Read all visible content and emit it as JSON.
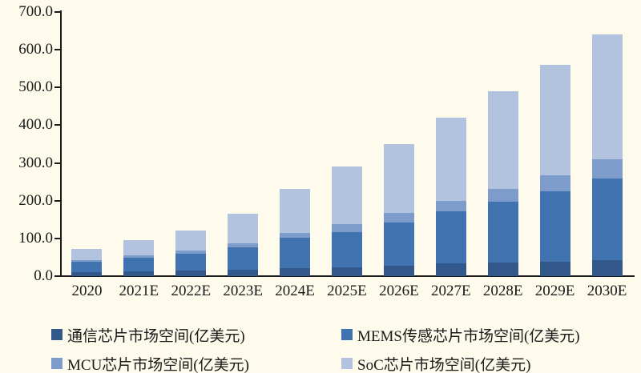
{
  "page": {
    "background_color": "#FEFAEC",
    "text_color": "#1A1A1A",
    "axis_color": "#1A1A1A"
  },
  "chart_data": {
    "type": "bar",
    "stacked": true,
    "title": "",
    "xlabel": "",
    "ylabel": "",
    "categories": [
      "2020",
      "2021E",
      "2022E",
      "2023E",
      "2024E",
      "2025E",
      "2026E",
      "2027E",
      "2028E",
      "2029E",
      "2030E"
    ],
    "series": [
      {
        "name": "通信芯片市场空间(亿美元)",
        "color": "#33598C",
        "values": [
          10,
          13,
          15,
          17,
          22,
          24,
          28,
          33,
          36,
          38,
          43
        ]
      },
      {
        "name": "MEMS传感芯片市场空间(亿美元)",
        "color": "#4173B1",
        "values": [
          28,
          36,
          45,
          60,
          80,
          92,
          115,
          139,
          161,
          187,
          215
        ]
      },
      {
        "name": "MCU芯片市场空间(亿美元)",
        "color": "#7D9CCB",
        "values": [
          5,
          6,
          7,
          9,
          13,
          22,
          24,
          28,
          35,
          43,
          52
        ]
      },
      {
        "name": "SoC芯片市场空间(亿美元)",
        "color": "#B2C3E0",
        "values": [
          29,
          40,
          55,
          79,
          117,
          153,
          183,
          220,
          258,
          292,
          331
        ]
      }
    ],
    "totals": [
      72,
      95,
      122,
      165,
      232,
      291,
      350,
      420,
      490,
      560,
      641
    ],
    "ylim": [
      0,
      700
    ],
    "yticks": [
      {
        "value": 700,
        "label": "700.0"
      },
      {
        "value": 600,
        "label": "600.0"
      },
      {
        "value": 500,
        "label": "500.0"
      },
      {
        "value": 400,
        "label": "400.0"
      },
      {
        "value": 300,
        "label": "300.0"
      },
      {
        "value": 200,
        "label": "200.0"
      },
      {
        "value": 100,
        "label": "100.0"
      },
      {
        "value": 0,
        "label": "0.0"
      }
    ],
    "grid": false,
    "legend_position": "bottom"
  }
}
